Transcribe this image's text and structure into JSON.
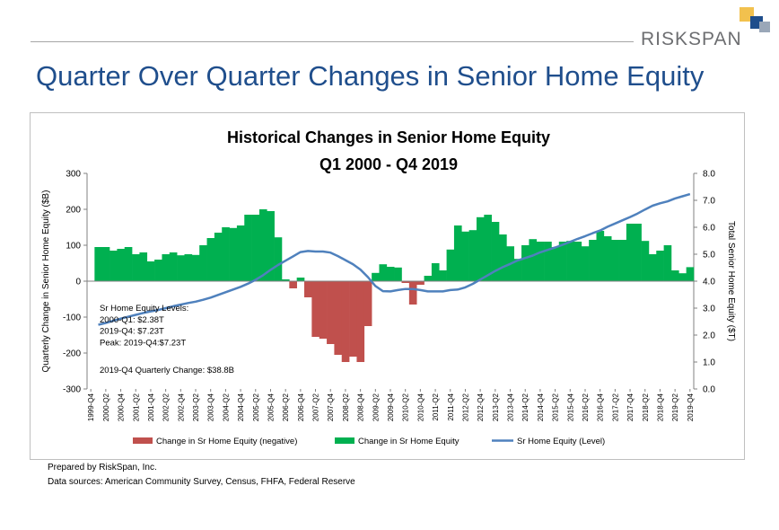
{
  "brand": {
    "name": "RISKSPAN",
    "logo_colors": [
      "#f2c14e",
      "#1f4e8c",
      "#9aa7b8"
    ]
  },
  "page": {
    "title": "Quarter Over Quarter Changes in Senior Home Equity",
    "footer_lines": [
      "Prepared by RiskSpan, Inc.",
      "Data sources: American Community Survey, Census, FHFA, Federal Reserve"
    ]
  },
  "chart_data": {
    "type": "bar",
    "title": "Historical Changes in Senior Home Equity",
    "subtitle": "Q1 2000 - Q4 2019",
    "ylabel": "Quarterly Change in Senior Home Equity ($B)",
    "y2label": "Total Senior Home Equity ($T)",
    "ylim": [
      -300,
      300
    ],
    "y_ticks": [
      300,
      200,
      100,
      0,
      -100,
      -200,
      -300
    ],
    "y_tick_labels": [
      "300",
      "200",
      "100",
      "0",
      "-100",
      "-200",
      "-300"
    ],
    "y2lim": [
      0,
      8
    ],
    "y2_ticks": [
      8,
      7,
      6,
      5,
      4,
      3,
      2,
      1,
      0
    ],
    "y2_tick_labels": [
      "8.0",
      "7.0",
      "6.0",
      "5.0",
      "4.0",
      "3.0",
      "2.0",
      "1.0",
      "0.0"
    ],
    "x_tick_labels": [
      "1999-Q4",
      "2000-Q2",
      "2000-Q4",
      "2001-Q2",
      "2001-Q4",
      "2002-Q2",
      "2002-Q4",
      "2003-Q2",
      "2003-Q4",
      "2004-Q2",
      "2004-Q4",
      "2005-Q2",
      "2005-Q4",
      "2006-Q2",
      "2006-Q4",
      "2007-Q2",
      "2007-Q4",
      "2008-Q2",
      "2008-Q4",
      "2009-Q2",
      "2009-Q4",
      "2010-Q2",
      "2010-Q4",
      "2011-Q2",
      "2011-Q4",
      "2012-Q2",
      "2012-Q4",
      "2013-Q2",
      "2013-Q4",
      "2014-Q2",
      "2014-Q4",
      "2015-Q2",
      "2015-Q4",
      "2016-Q2",
      "2016-Q4",
      "2017-Q2",
      "2017-Q4",
      "2018-Q2",
      "2018-Q4",
      "2019-Q2",
      "2019-Q4"
    ],
    "changes": [
      95,
      95,
      85,
      90,
      95,
      75,
      80,
      55,
      60,
      75,
      80,
      72,
      75,
      73,
      100,
      120,
      135,
      150,
      148,
      155,
      185,
      185,
      200,
      195,
      122,
      5,
      -20,
      10,
      -45,
      -155,
      -160,
      -175,
      -205,
      -225,
      -210,
      -225,
      -125,
      23,
      47,
      40,
      38,
      -5,
      -65,
      -10,
      15,
      50,
      30,
      88,
      155,
      138,
      142,
      178,
      185,
      165,
      130,
      97,
      62,
      100,
      117,
      110,
      110,
      95,
      110,
      112,
      110,
      97,
      115,
      140,
      125,
      115,
      115,
      160,
      160,
      112,
      75,
      85,
      100,
      30,
      22,
      39
    ],
    "level": [
      2.38,
      2.45,
      2.53,
      2.61,
      2.68,
      2.75,
      2.82,
      2.88,
      2.93,
      3.0,
      3.07,
      3.13,
      3.19,
      3.24,
      3.31,
      3.39,
      3.49,
      3.59,
      3.69,
      3.79,
      3.91,
      4.05,
      4.22,
      4.42,
      4.6,
      4.76,
      4.92,
      5.08,
      5.12,
      5.1,
      5.1,
      5.06,
      4.93,
      4.78,
      4.63,
      4.43,
      4.15,
      3.82,
      3.63,
      3.62,
      3.67,
      3.71,
      3.71,
      3.67,
      3.62,
      3.62,
      3.62,
      3.67,
      3.69,
      3.77,
      3.9,
      4.06,
      4.22,
      4.38,
      4.52,
      4.64,
      4.77,
      4.86,
      4.95,
      5.07,
      5.16,
      5.25,
      5.35,
      5.46,
      5.57,
      5.67,
      5.78,
      5.88,
      6.02,
      6.14,
      6.26,
      6.38,
      6.51,
      6.66,
      6.8,
      6.89,
      6.96,
      7.07,
      7.15,
      7.23
    ],
    "negative_color": "#c0504d",
    "positive_color": "#00b050",
    "line_color": "#4f81bd",
    "legend": [
      {
        "label": "Change in Sr Home Equity (negative)",
        "color": "#c0504d",
        "kind": "bar"
      },
      {
        "label": "Change in Sr Home Equity",
        "color": "#00b050",
        "kind": "bar"
      },
      {
        "label": "Sr Home Equity (Level)",
        "color": "#4f81bd",
        "kind": "line"
      }
    ],
    "legend_position": "bottom",
    "annotation_lines": [
      "Sr Home Equity Levels:",
      "2000-Q1: $2.38T",
      "2019-Q4: $7.23T",
      "Peak: 2019-Q4:$7.23T",
      "",
      "2019-Q4 Quarterly Change: $38.8B"
    ],
    "grid": false
  }
}
